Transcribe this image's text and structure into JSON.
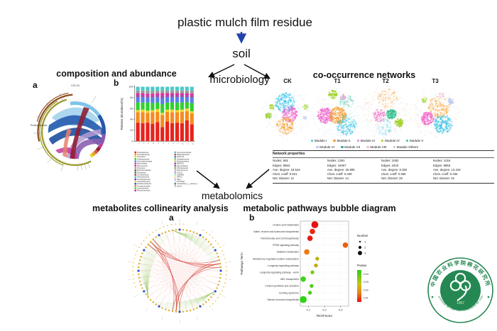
{
  "flow": {
    "title": "plastic mulch film residue",
    "node_soil": "soil",
    "node_microbiology": "microbiology",
    "node_metabolomics": "metabolomics",
    "arrow_color_blue": "#2244aa"
  },
  "headings": {
    "composition": "composition and abundance",
    "networks": "co-occurrence networks",
    "collinearity": "metabolites collinearity analysis",
    "bubble": "metabolic pathways bubble diagram"
  },
  "panel_labels": {
    "composition_a": "a",
    "composition_b": "b",
    "metabolomics_a": "a",
    "metabolomics_b": "b"
  },
  "circos": {
    "title": "Circos",
    "left_label": "Proteobacteria"
  },
  "networks": {
    "groups": [
      {
        "label": "CK"
      },
      {
        "label": "T1"
      },
      {
        "label": "T2"
      },
      {
        "label": "T3"
      }
    ],
    "modules_row1": [
      {
        "label": "Module I",
        "color": "#45c8e8"
      },
      {
        "label": "Module II",
        "color": "#f59d2c"
      },
      {
        "label": "Module III",
        "color": "#e77fd4"
      },
      {
        "label": "Module IV",
        "color": "#a6c832"
      },
      {
        "label": "Module V",
        "color": "#3cbd8f"
      }
    ],
    "modules_row2": [
      {
        "label": "Module VI",
        "color": "#b9c6f2"
      },
      {
        "label": "Module VII",
        "color": "#3b9ea0"
      },
      {
        "label": "Module VIII",
        "color": "#f4bcd4"
      },
      {
        "label": "Module Others",
        "color": "#c8c8c8"
      }
    ]
  },
  "network_properties": {
    "title": "Network properties",
    "row_labels": [
      "Nodes",
      "Edges",
      "Ave. degree",
      "Clust. coeff",
      "Net. Diamet"
    ],
    "columns": [
      {
        "group": "CK",
        "values": [
          "991",
          "9684",
          "19.544",
          "0.521",
          "12"
        ]
      },
      {
        "group": "T1",
        "values": [
          "1391",
          "19467",
          "26.895",
          "0.348",
          "14"
        ]
      },
      {
        "group": "T2",
        "values": [
          "1062",
          "4443",
          "8.392",
          "0.356",
          "26"
        ]
      },
      {
        "group": "T3",
        "values": [
          "1016",
          "9963",
          "13.416",
          "0.436",
          "16"
        ]
      }
    ]
  },
  "bar_legend": {
    "col1": [
      {
        "label": "Proteobacteria",
        "color": "#e8231d"
      },
      {
        "label": "Actinobacteriota",
        "color": "#f68b1f"
      },
      {
        "label": "Chloroflexi",
        "color": "#f5d327"
      },
      {
        "label": "Acidobacteriota",
        "color": "#2fd12f"
      },
      {
        "label": "Gemmatimonadota",
        "color": "#5a7fe8"
      },
      {
        "label": "Bacteroidota",
        "color": "#a64ca6"
      },
      {
        "label": "Myxococcota",
        "color": "#e81ca2"
      },
      {
        "label": "Firmicutes",
        "color": "#9a9a9a"
      },
      {
        "label": "Methylomirabilota",
        "color": "#8a5a2a"
      },
      {
        "label": "Nitrospirota",
        "color": "#2a8a5a"
      },
      {
        "label": "Crenarchaeota",
        "color": "#d42a5a"
      },
      {
        "label": "Patescibacteria",
        "color": "#2ad4d4"
      },
      {
        "label": "Desulfobacterota",
        "color": "#7a2ad4"
      },
      {
        "label": "Latescibacterota",
        "color": "#d4d42a"
      },
      {
        "label": "Entotheonellaeota",
        "color": "#2a5ad4"
      },
      {
        "label": "Armatimonadota",
        "color": "#d47a2a"
      },
      {
        "label": "Cyanobacteria",
        "color": "#5ad42a"
      },
      {
        "label": "Planctomycetota",
        "color": "#d42aa6"
      }
    ],
    "col2": [
      {
        "label": "Verrucomicrobiota",
        "color": "#4fc8c8"
      },
      {
        "label": "Bdellovibrionota",
        "color": "#c84f4f"
      },
      {
        "label": "RCP2-54",
        "color": "#4f86c8"
      },
      {
        "label": "Abditibacteriota",
        "color": "#86c84f"
      },
      {
        "label": "Elusimicrobiota",
        "color": "#c8c84f"
      },
      {
        "label": "MBNT15",
        "color": "#864fc8"
      },
      {
        "label": "Spirochaetota",
        "color": "#c84f86"
      },
      {
        "label": "Fibrobacterota",
        "color": "#4fc886"
      },
      {
        "label": "Deinococcota",
        "color": "#f0a0a0"
      },
      {
        "label": "GAL15",
        "color": "#a0a0f0"
      },
      {
        "label": "Sva0485",
        "color": "#a0f0a0"
      },
      {
        "label": "WPS-2",
        "color": "#e8e87a"
      },
      {
        "label": "NB1-j",
        "color": "#f0a0f0"
      },
      {
        "label": "FCPU426",
        "color": "#a0f0f0"
      },
      {
        "label": "unclassified_k__norank_d__Bacteria",
        "color": "#787878"
      },
      {
        "label": "others",
        "color": "#c0c0c0"
      }
    ]
  },
  "chart_data": [
    {
      "id": "composition_bars",
      "type": "bar",
      "stacked": true,
      "title": "",
      "xlabel": "",
      "ylabel": "Relative abundance(%)",
      "ylim": [
        0,
        100
      ],
      "yticks": [
        0,
        20,
        40,
        60,
        80,
        100
      ],
      "categories": [
        "1",
        "2",
        "3",
        "4",
        "5",
        "6",
        "7",
        "8",
        "9",
        "10",
        "11",
        "12"
      ],
      "series": [
        {
          "name": "Proteobacteria",
          "color": "#e8231d",
          "values": [
            34,
            33,
            34,
            32,
            35,
            26,
            36,
            33,
            34,
            33,
            38,
            31
          ]
        },
        {
          "name": "Actinobacteriota",
          "color": "#f68b1f",
          "values": [
            19,
            20,
            18,
            21,
            19,
            22,
            18,
            20,
            19,
            21,
            17,
            20
          ]
        },
        {
          "name": "Chloroflexi",
          "color": "#f5d327",
          "values": [
            4,
            5,
            4,
            4,
            5,
            4,
            4,
            5,
            4,
            4,
            5,
            4
          ]
        },
        {
          "name": "Acidobacteriota",
          "color": "#2fd12f",
          "values": [
            14,
            13,
            15,
            13,
            12,
            16,
            13,
            13,
            14,
            13,
            12,
            15
          ]
        },
        {
          "name": "Gemmatimonadota",
          "color": "#5a7fe8",
          "values": [
            10,
            10,
            9,
            10,
            10,
            11,
            10,
            10,
            10,
            10,
            9,
            10
          ]
        },
        {
          "name": "Bacteroidota",
          "color": "#a64ca6",
          "values": [
            4,
            4,
            4,
            4,
            4,
            5,
            4,
            4,
            4,
            4,
            4,
            4
          ]
        },
        {
          "name": "Myxococcota",
          "color": "#e81ca2",
          "values": [
            3,
            3,
            3,
            3,
            3,
            4,
            3,
            3,
            3,
            3,
            3,
            3
          ]
        },
        {
          "name": "Firmicutes",
          "color": "#9a9a9a",
          "values": [
            5,
            5,
            6,
            5,
            5,
            5,
            5,
            5,
            5,
            5,
            5,
            6
          ]
        },
        {
          "name": "others",
          "color": "#4fc8c8",
          "values": [
            7,
            7,
            7,
            8,
            7,
            7,
            7,
            7,
            7,
            7,
            7,
            7
          ]
        }
      ]
    },
    {
      "id": "pathway_bubbles",
      "type": "scatter",
      "xlabel": "RichFactor",
      "ylabel": "Pathways Term",
      "xlim": [
        0.05,
        0.35
      ],
      "xticks": [
        "0.1",
        "0.2",
        "0.3"
      ],
      "legend_number": {
        "title": "Number",
        "values": [
          "1",
          "2",
          "3"
        ]
      },
      "legend_pvalue": {
        "title": "Pvalue",
        "ticks": [
          "0.04",
          "0.03",
          "0.02",
          "0.01"
        ],
        "top_color": "#2ecc1a",
        "bottom_color": "#e81010"
      },
      "rows": [
        {
          "label": "Linoleic acid metabolism",
          "richfactor": 0.14,
          "number": 3,
          "color": "#e81010"
        },
        {
          "label": "Valine, leucine and isoleucine biosynthesis",
          "richfactor": 0.125,
          "number": 2,
          "color": "#e82a0e"
        },
        {
          "label": "Pantothenate and CoA biosynthesis",
          "richfactor": 0.11,
          "number": 2,
          "color": "#e81a10"
        },
        {
          "label": "PPAR signaling pathway",
          "richfactor": 0.33,
          "number": 2,
          "color": "#e8600f"
        },
        {
          "label": "Histidine metabolism",
          "richfactor": 0.09,
          "number": 2,
          "color": "#ed7a12"
        },
        {
          "label": "Aldosterone-regulated sodium reabsorption",
          "richfactor": 0.155,
          "number": 1,
          "color": "#b8b313"
        },
        {
          "label": "Longevity regulating pathway",
          "richfactor": 0.147,
          "number": 1,
          "color": "#c2a912"
        },
        {
          "label": "Longevity regulating pathway - worm",
          "richfactor": 0.125,
          "number": 1,
          "color": "#7ec414"
        },
        {
          "label": "ABC transporters",
          "richfactor": 0.068,
          "number": 2,
          "color": "#3fd41a"
        },
        {
          "label": "Cortisol synthesis and secretion",
          "richfactor": 0.12,
          "number": 1,
          "color": "#52cc16"
        },
        {
          "label": "Cushing syndrome",
          "richfactor": 0.11,
          "number": 1,
          "color": "#45d216"
        },
        {
          "label": "Steroid hormone biosynthesis",
          "richfactor": 0.068,
          "number": 3,
          "color": "#2ed414"
        }
      ]
    }
  ],
  "stamp": {
    "text_top": "中国农业科学院棉花研究所",
    "text_bottom": "INSTITUTE OF COTTON RESEARCH OF CAAS",
    "year": "1957",
    "color": "#157f46"
  }
}
